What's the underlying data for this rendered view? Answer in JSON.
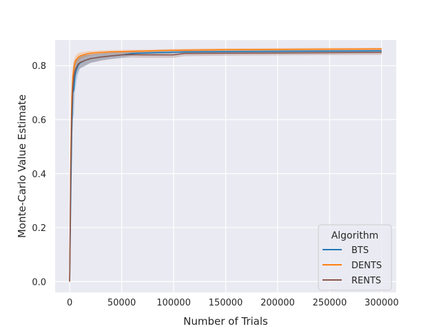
{
  "chart_data": {
    "type": "line",
    "title": "",
    "xlabel": "Number of Trials",
    "ylabel": "Monte-Carlo Value Estimate",
    "xlim": [
      -14000,
      314000
    ],
    "ylim": [
      -0.04,
      0.895
    ],
    "xticks": [
      0,
      50000,
      100000,
      150000,
      200000,
      250000,
      300000
    ],
    "xtick_labels": [
      "0",
      "50000",
      "100000",
      "150000",
      "200000",
      "250000",
      "300000"
    ],
    "yticks": [
      0.0,
      0.2,
      0.4,
      0.6,
      0.8
    ],
    "ytick_labels": [
      "0.0",
      "0.2",
      "0.4",
      "0.6",
      "0.8"
    ],
    "grid": true,
    "legend": {
      "title": "Algorithm",
      "position": "lower-right"
    },
    "series": [
      {
        "name": "BTS",
        "color": "#1f77b4",
        "x": [
          0,
          1000,
          2000,
          3000,
          4000,
          5000,
          6000,
          8000,
          10000,
          15000,
          20000,
          30000,
          40000,
          50000,
          60000,
          80000,
          100000,
          150000,
          200000,
          250000,
          300000
        ],
        "y": [
          0.0,
          0.3,
          0.55,
          0.7,
          0.71,
          0.76,
          0.78,
          0.8,
          0.81,
          0.82,
          0.826,
          0.832,
          0.836,
          0.84,
          0.845,
          0.848,
          0.85,
          0.852,
          0.853,
          0.854,
          0.855
        ],
        "lower": [
          0.0,
          0.25,
          0.48,
          0.6,
          0.62,
          0.7,
          0.73,
          0.77,
          0.79,
          0.8,
          0.81,
          0.82,
          0.825,
          0.83,
          0.837,
          0.842,
          0.845,
          0.848,
          0.849,
          0.85,
          0.851
        ],
        "upper": [
          0.0,
          0.35,
          0.62,
          0.78,
          0.79,
          0.81,
          0.82,
          0.83,
          0.835,
          0.84,
          0.842,
          0.845,
          0.848,
          0.85,
          0.853,
          0.855,
          0.856,
          0.857,
          0.858,
          0.859,
          0.86
        ]
      },
      {
        "name": "DENTS",
        "color": "#ff7f0e",
        "x": [
          0,
          1000,
          2000,
          3000,
          4000,
          5000,
          6000,
          8000,
          10000,
          15000,
          20000,
          30000,
          40000,
          50000,
          60000,
          80000,
          100000,
          150000,
          200000,
          250000,
          300000
        ],
        "y": [
          0.0,
          0.45,
          0.68,
          0.76,
          0.79,
          0.81,
          0.82,
          0.83,
          0.836,
          0.842,
          0.846,
          0.849,
          0.851,
          0.852,
          0.853,
          0.855,
          0.857,
          0.859,
          0.86,
          0.861,
          0.862
        ],
        "lower": [
          0.0,
          0.4,
          0.63,
          0.72,
          0.76,
          0.79,
          0.8,
          0.815,
          0.823,
          0.832,
          0.838,
          0.842,
          0.845,
          0.847,
          0.848,
          0.851,
          0.853,
          0.855,
          0.856,
          0.857,
          0.858
        ],
        "upper": [
          0.0,
          0.5,
          0.72,
          0.8,
          0.82,
          0.83,
          0.838,
          0.845,
          0.849,
          0.852,
          0.854,
          0.856,
          0.857,
          0.858,
          0.859,
          0.86,
          0.862,
          0.864,
          0.865,
          0.866,
          0.867
        ]
      },
      {
        "name": "RENTS",
        "color": "#8c564b",
        "x": [
          0,
          1000,
          2000,
          3000,
          4000,
          5000,
          6000,
          8000,
          10000,
          15000,
          20000,
          30000,
          40000,
          50000,
          60000,
          70000,
          100000,
          110000,
          150000,
          200000,
          250000,
          300000
        ],
        "y": [
          0.0,
          0.4,
          0.62,
          0.72,
          0.76,
          0.78,
          0.79,
          0.805,
          0.812,
          0.82,
          0.826,
          0.832,
          0.836,
          0.84,
          0.841,
          0.84,
          0.84,
          0.845,
          0.846,
          0.847,
          0.848,
          0.849
        ],
        "lower": [
          0.0,
          0.34,
          0.55,
          0.66,
          0.71,
          0.74,
          0.76,
          0.78,
          0.79,
          0.8,
          0.81,
          0.818,
          0.824,
          0.828,
          0.83,
          0.829,
          0.829,
          0.835,
          0.837,
          0.838,
          0.839,
          0.84
        ],
        "upper": [
          0.0,
          0.46,
          0.68,
          0.78,
          0.81,
          0.82,
          0.825,
          0.83,
          0.834,
          0.84,
          0.842,
          0.846,
          0.849,
          0.852,
          0.852,
          0.851,
          0.851,
          0.855,
          0.855,
          0.856,
          0.857,
          0.858
        ]
      }
    ]
  }
}
